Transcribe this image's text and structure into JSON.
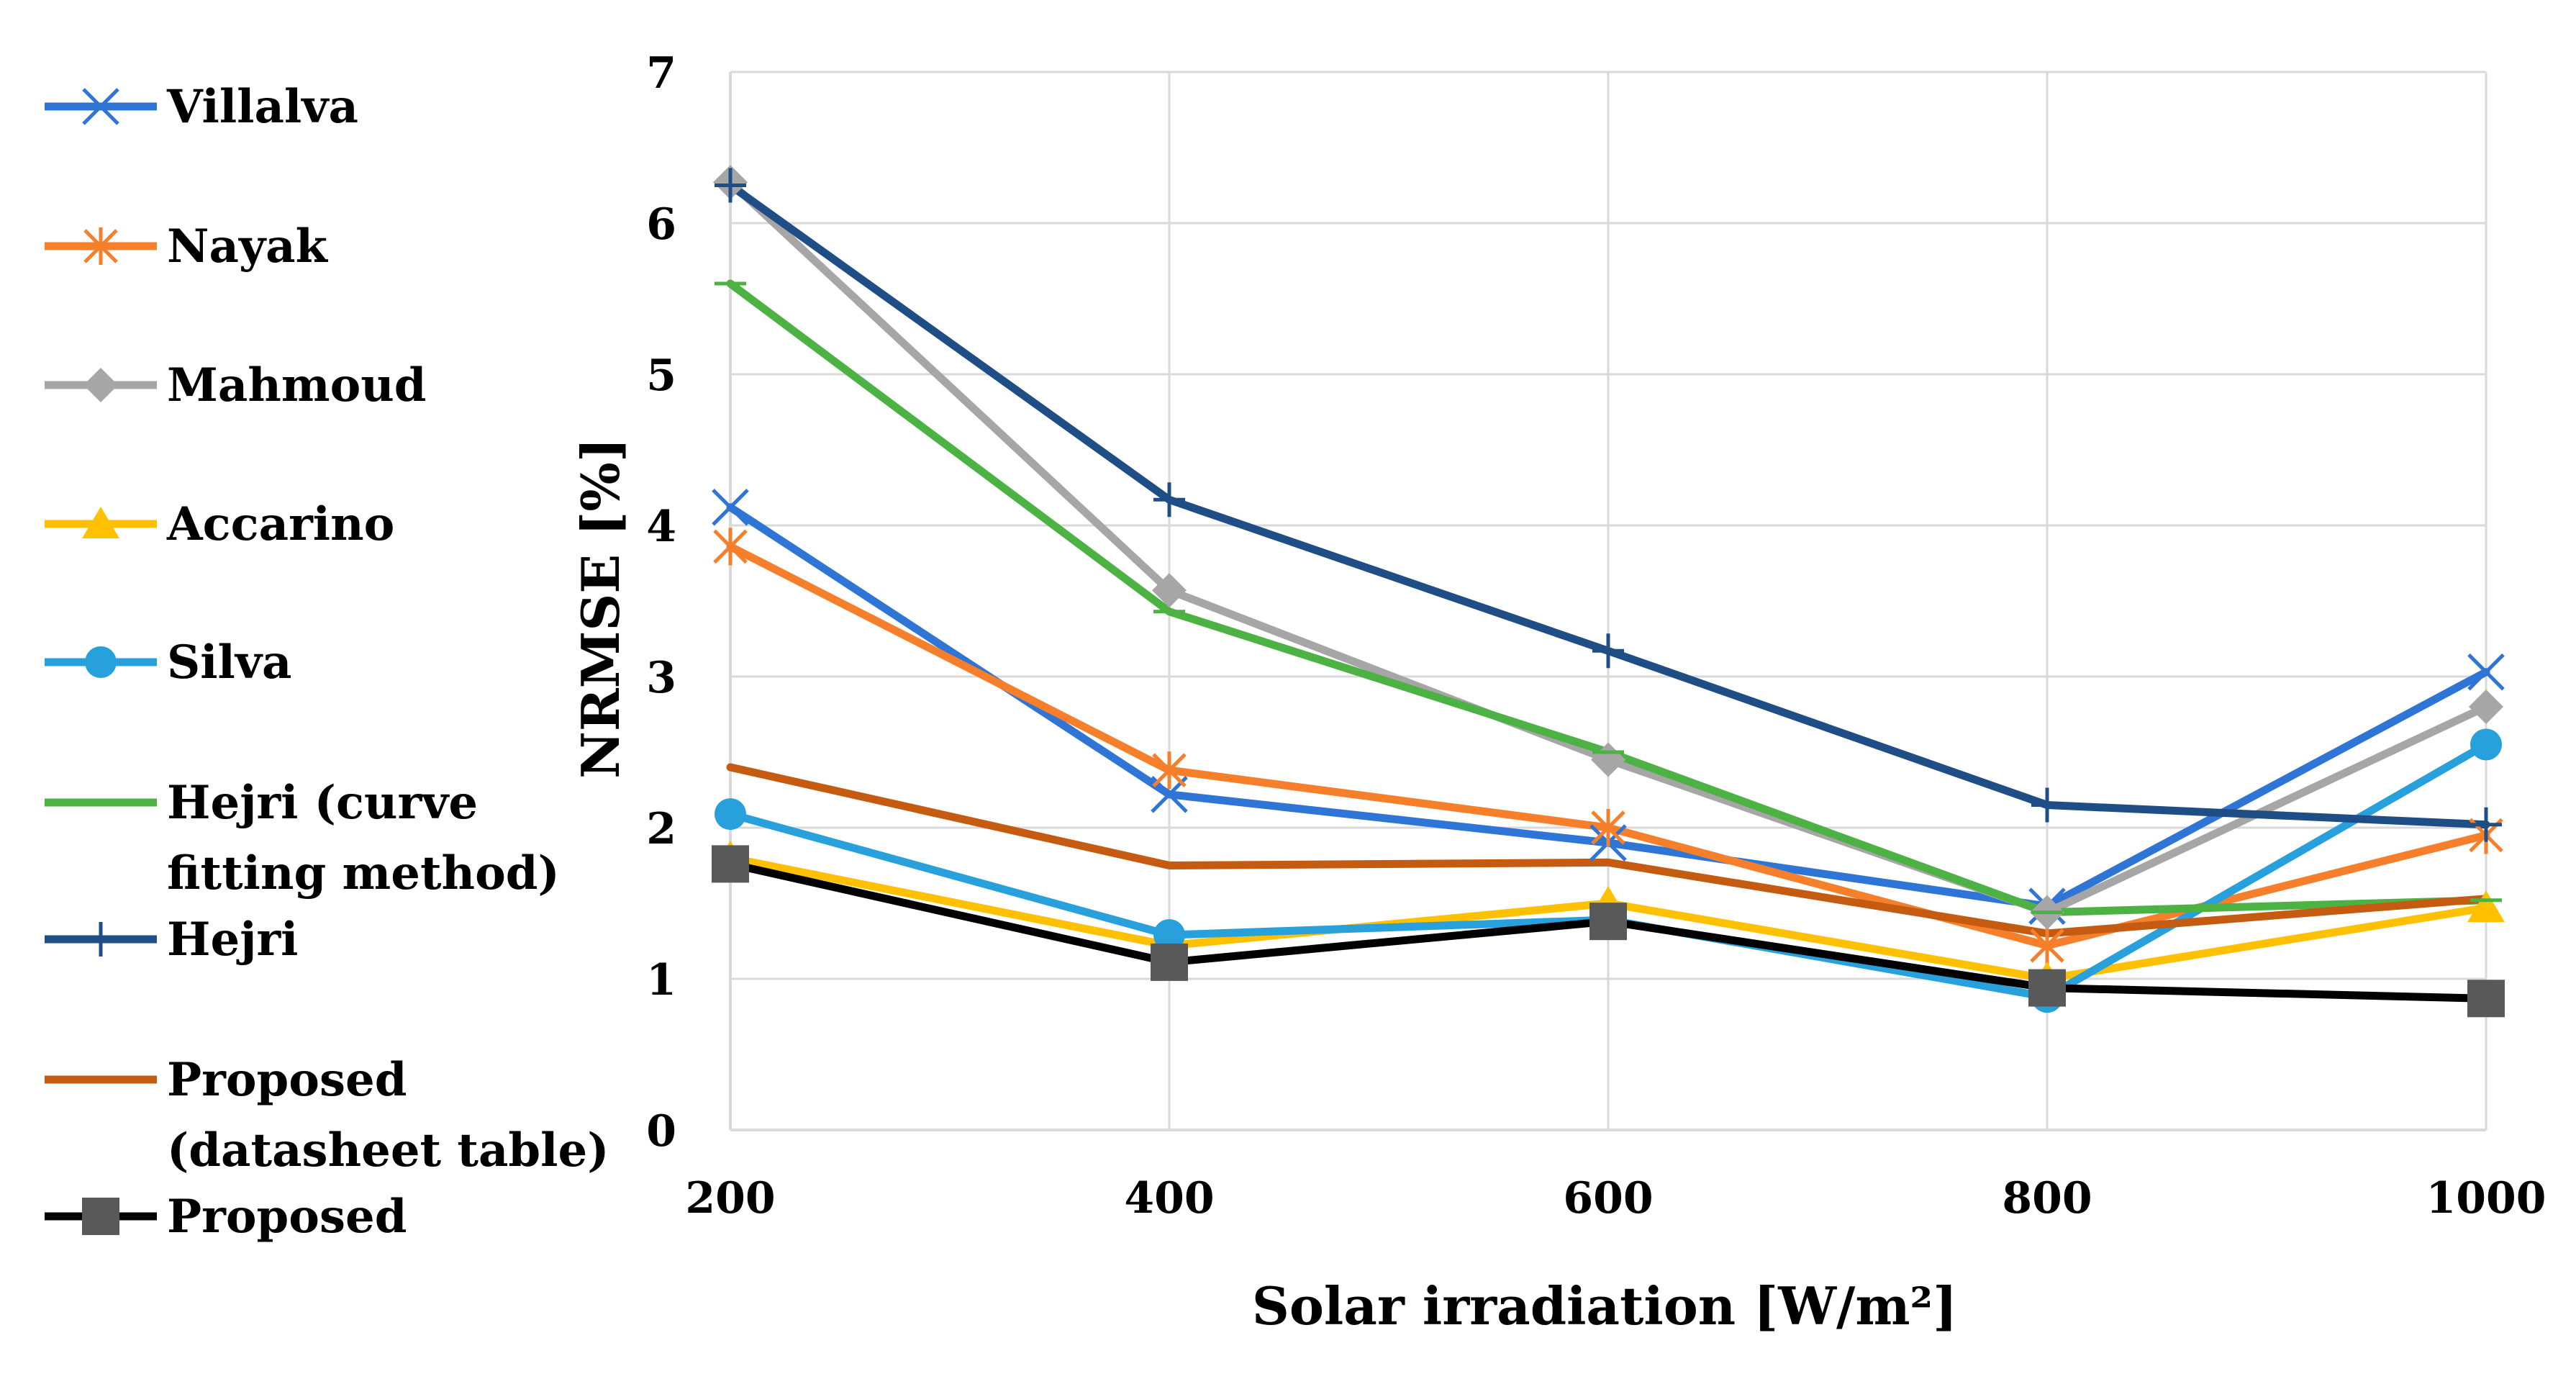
{
  "chart_data": {
    "type": "line",
    "title": "",
    "xlabel": "Solar irradiation [W/m²]",
    "ylabel": "NRMSE [%]",
    "x": [
      200,
      400,
      600,
      800,
      1000
    ],
    "x_tick_labels": [
      "200",
      "400",
      "600",
      "800",
      "1000"
    ],
    "ylim": [
      0,
      7
    ],
    "y_ticks": [
      0,
      1,
      2,
      3,
      4,
      5,
      6,
      7
    ],
    "y_tick_labels": [
      "0",
      "1",
      "2",
      "3",
      "4",
      "5",
      "6",
      "7"
    ],
    "grid": true,
    "legend_position": "left",
    "series": [
      {
        "name": "Villalva",
        "values": [
          4.12,
          2.22,
          1.9,
          1.48,
          3.03
        ],
        "color": "#2e75d6",
        "marker": "x"
      },
      {
        "name": "Nayak",
        "values": [
          3.86,
          2.38,
          2.0,
          1.22,
          1.95
        ],
        "color": "#f57f2a",
        "marker": "star"
      },
      {
        "name": "Mahmoud",
        "values": [
          6.27,
          3.57,
          2.45,
          1.44,
          2.8
        ],
        "color": "#a6a6a6",
        "marker": "diamond"
      },
      {
        "name": "Accarino",
        "values": [
          1.8,
          1.22,
          1.5,
          1.0,
          1.47
        ],
        "color": "#ffc000",
        "marker": "triangle"
      },
      {
        "name": "Silva",
        "values": [
          2.09,
          1.29,
          1.39,
          0.88,
          2.55
        ],
        "color": "#27a0dc",
        "marker": "circle"
      },
      {
        "name": "Hejri (curve fitting method)",
        "legend_lines": [
          "Hejri (curve",
          "fitting method)"
        ],
        "values": [
          5.6,
          3.43,
          2.5,
          1.44,
          1.52
        ],
        "color": "#4cb244",
        "marker": "dash"
      },
      {
        "name": "Hejri",
        "values": [
          6.25,
          4.17,
          3.17,
          2.15,
          2.02
        ],
        "color": "#1f4e86",
        "marker": "plus"
      },
      {
        "name": "Proposed (datasheet table)",
        "legend_lines": [
          "Proposed",
          "(datasheet table)"
        ],
        "values": [
          2.4,
          1.75,
          1.77,
          1.3,
          1.53
        ],
        "color": "#c55a11",
        "marker": "none"
      },
      {
        "name": "Proposed",
        "values": [
          1.76,
          1.11,
          1.38,
          0.94,
          0.87
        ],
        "color": "#000000",
        "marker": "square",
        "marker_color": "#595959"
      }
    ]
  }
}
